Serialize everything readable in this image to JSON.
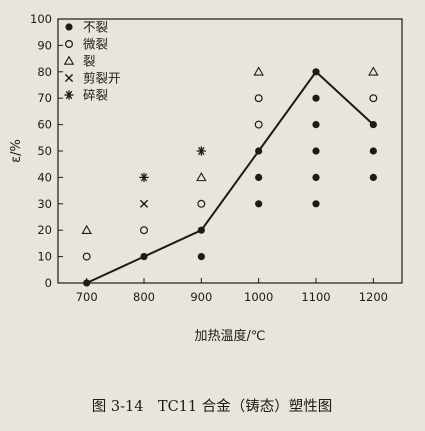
{
  "chart_data": {
    "type": "scatter",
    "title": "",
    "xlabel": "加热温度/℃",
    "ylabel": "ε/%",
    "xlim": [
      650,
      1250
    ],
    "ylim": [
      0,
      100
    ],
    "x_ticks": [
      700,
      800,
      900,
      1000,
      1100,
      1200
    ],
    "y_ticks": [
      0,
      10,
      20,
      30,
      40,
      50,
      60,
      70,
      80,
      90,
      100
    ],
    "grid": false,
    "legend_position": "top-left",
    "legend": [
      {
        "marker": "filled-circle",
        "label": "不裂"
      },
      {
        "marker": "open-circle",
        "label": "微裂"
      },
      {
        "marker": "open-triangle",
        "label": "裂"
      },
      {
        "marker": "cross",
        "label": "剪裂开"
      },
      {
        "marker": "asterisk",
        "label": "碎裂"
      }
    ],
    "series": [
      {
        "marker": "filled-circle",
        "points": [
          [
            700,
            0
          ],
          [
            800,
            10
          ],
          [
            900,
            10
          ],
          [
            900,
            20
          ],
          [
            1000,
            30
          ],
          [
            1000,
            40
          ],
          [
            1000,
            50
          ],
          [
            1100,
            30
          ],
          [
            1100,
            40
          ],
          [
            1100,
            50
          ],
          [
            1100,
            60
          ],
          [
            1100,
            70
          ],
          [
            1100,
            80
          ],
          [
            1200,
            40
          ],
          [
            1200,
            50
          ],
          [
            1200,
            60
          ]
        ]
      },
      {
        "marker": "open-circle",
        "points": [
          [
            700,
            10
          ],
          [
            800,
            20
          ],
          [
            900,
            30
          ],
          [
            1000,
            60
          ],
          [
            1000,
            70
          ],
          [
            1200,
            70
          ]
        ]
      },
      {
        "marker": "open-triangle",
        "points": [
          [
            700,
            20
          ],
          [
            900,
            40
          ],
          [
            1000,
            80
          ],
          [
            1200,
            80
          ]
        ]
      },
      {
        "marker": "cross",
        "points": [
          [
            800,
            30
          ]
        ]
      },
      {
        "marker": "asterisk",
        "points": [
          [
            800,
            40
          ],
          [
            900,
            50
          ]
        ]
      }
    ],
    "boundary_line": [
      [
        700,
        0
      ],
      [
        800,
        10
      ],
      [
        900,
        20
      ],
      [
        1000,
        50
      ],
      [
        1100,
        80
      ],
      [
        1200,
        60
      ]
    ]
  },
  "caption": "图 3-14　TC11 合金（铸态）塑性图",
  "colors": {
    "ink": "#1b1b1b",
    "paper": "#e9e5dc"
  }
}
